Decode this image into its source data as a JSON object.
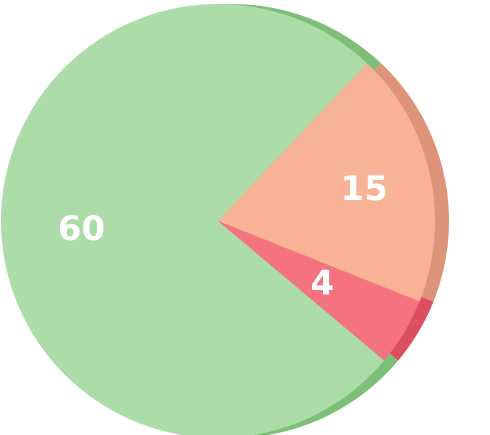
{
  "chart_data": {
    "type": "pie",
    "categories": [
      "",
      "",
      ""
    ],
    "values": [
      60,
      15,
      4
    ],
    "labels": [
      "60",
      "15",
      "4"
    ],
    "colors": [
      "#acdca8",
      "#f8b397",
      "#f5727f"
    ],
    "side_colors": [
      "#7dbf77",
      "#de9479",
      "#dc4f60"
    ],
    "legend": "none",
    "title": ""
  }
}
